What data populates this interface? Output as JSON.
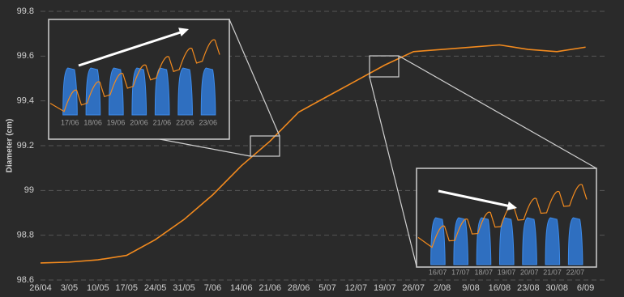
{
  "chart_data": {
    "type": "line",
    "y_label": "Diameter (cm)",
    "categories": [
      "26/04",
      "3/05",
      "10/05",
      "17/05",
      "24/05",
      "31/05",
      "7/06",
      "14/06",
      "21/06",
      "28/06",
      "5/07",
      "12/07",
      "19/07",
      "26/07",
      "2/08",
      "9/08",
      "16/08",
      "23/08",
      "30/08",
      "6/09"
    ],
    "series": [
      {
        "name": "Diameter",
        "color": "#f28a1e",
        "values": [
          98.676,
          98.68,
          98.69,
          98.71,
          98.78,
          98.87,
          98.98,
          99.11,
          99.22,
          99.35,
          99.42,
          99.49,
          99.56,
          99.62,
          99.63,
          99.64,
          99.65,
          99.63,
          99.62,
          99.64
        ]
      }
    ],
    "ylim": [
      98.6,
      99.8
    ],
    "yticks": [
      98.6,
      98.8,
      99,
      99.2,
      99.4,
      99.6,
      99.8
    ],
    "grid": true
  },
  "insets": [
    {
      "xticks": [
        "17/06",
        "18/06",
        "19/06",
        "20/06",
        "21/06",
        "22/06",
        "23/06"
      ]
    },
    {
      "xticks": [
        "16/07",
        "17/07",
        "18/07",
        "19/07",
        "20/07",
        "21/07",
        "22/07"
      ]
    }
  ]
}
